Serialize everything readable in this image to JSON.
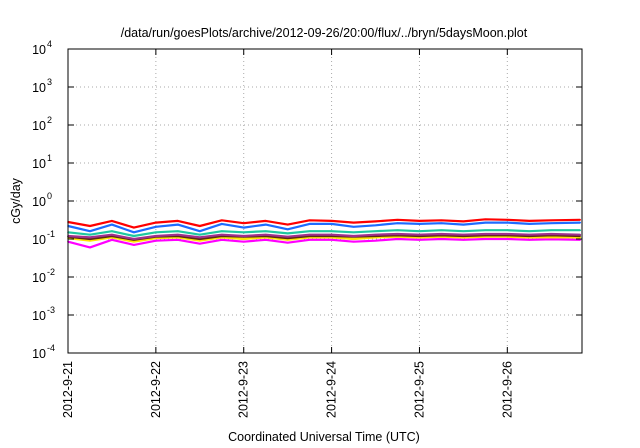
{
  "chart_data": {
    "type": "line",
    "title": "/data/run/goesPlots/archive/2012-09-26/20:00/flux/../bryn/5daysMoon.plot",
    "xlabel": "Coordinated Universal Time (UTC)",
    "ylabel": "cGy/day",
    "yscale": "log",
    "ylim": [
      0.0001,
      10000
    ],
    "xlim_days_from_2012-9-21": [
      0,
      5.85
    ],
    "grid": true,
    "y_ticks": [
      {
        "exp": -4,
        "label": "10",
        "sup": "-4"
      },
      {
        "exp": -3,
        "label": "10",
        "sup": "-3"
      },
      {
        "exp": -2,
        "label": "10",
        "sup": "-2"
      },
      {
        "exp": -1,
        "label": "10",
        "sup": "-1"
      },
      {
        "exp": 0,
        "label": "10",
        "sup": "0"
      },
      {
        "exp": 1,
        "label": "10",
        "sup": "1"
      },
      {
        "exp": 2,
        "label": "10",
        "sup": "2"
      },
      {
        "exp": 3,
        "label": "10",
        "sup": "3"
      },
      {
        "exp": 4,
        "label": "10",
        "sup": "4"
      }
    ],
    "x_ticks": [
      {
        "day": 0,
        "label": "2012-9-21"
      },
      {
        "day": 1,
        "label": "2012-9-22"
      },
      {
        "day": 2,
        "label": "2012-9-23"
      },
      {
        "day": 3,
        "label": "2012-9-24"
      },
      {
        "day": 4,
        "label": "2012-9-25"
      },
      {
        "day": 5,
        "label": "2012-9-26"
      }
    ],
    "x_days": [
      0,
      0.25,
      0.5,
      0.75,
      1,
      1.25,
      1.5,
      1.75,
      2,
      2.25,
      2.5,
      2.75,
      3,
      3.25,
      3.5,
      3.75,
      4,
      4.25,
      4.5,
      4.75,
      5,
      5.25,
      5.5,
      5.83
    ],
    "series": [
      {
        "name": "red",
        "color": "#ff0000",
        "values": [
          0.28,
          0.22,
          0.3,
          0.2,
          0.27,
          0.3,
          0.22,
          0.31,
          0.26,
          0.3,
          0.24,
          0.31,
          0.3,
          0.27,
          0.29,
          0.32,
          0.3,
          0.31,
          0.29,
          0.33,
          0.32,
          0.3,
          0.31,
          0.32
        ]
      },
      {
        "name": "blue",
        "color": "#1e6bff",
        "values": [
          0.22,
          0.16,
          0.24,
          0.15,
          0.21,
          0.24,
          0.16,
          0.25,
          0.2,
          0.24,
          0.18,
          0.25,
          0.25,
          0.21,
          0.23,
          0.26,
          0.25,
          0.26,
          0.24,
          0.27,
          0.27,
          0.25,
          0.26,
          0.27
        ]
      },
      {
        "name": "teal",
        "color": "#1ec8a0",
        "values": [
          0.15,
          0.13,
          0.16,
          0.12,
          0.15,
          0.16,
          0.13,
          0.16,
          0.15,
          0.16,
          0.14,
          0.16,
          0.16,
          0.15,
          0.16,
          0.17,
          0.16,
          0.17,
          0.16,
          0.17,
          0.17,
          0.16,
          0.17,
          0.17
        ]
      },
      {
        "name": "purple",
        "color": "#a0308c",
        "values": [
          0.12,
          0.11,
          0.13,
          0.1,
          0.12,
          0.13,
          0.11,
          0.13,
          0.12,
          0.13,
          0.115,
          0.13,
          0.13,
          0.12,
          0.13,
          0.135,
          0.13,
          0.135,
          0.13,
          0.135,
          0.135,
          0.13,
          0.135,
          0.13
        ]
      },
      {
        "name": "dark",
        "color": "#5a2a10",
        "values": [
          0.115,
          0.1,
          0.12,
          0.095,
          0.115,
          0.12,
          0.1,
          0.12,
          0.115,
          0.12,
          0.105,
          0.12,
          0.12,
          0.115,
          0.12,
          0.125,
          0.12,
          0.125,
          0.12,
          0.125,
          0.125,
          0.12,
          0.125,
          0.12
        ]
      },
      {
        "name": "yellow",
        "color": "#ffe600",
        "values": [
          0.105,
          0.09,
          0.11,
          0.085,
          0.105,
          0.11,
          0.09,
          0.11,
          0.1,
          0.11,
          0.095,
          0.11,
          0.11,
          0.1,
          0.11,
          0.115,
          0.11,
          0.115,
          0.11,
          0.115,
          0.115,
          0.11,
          0.112,
          0.11
        ]
      },
      {
        "name": "magenta",
        "color": "#ff00ff",
        "values": [
          0.085,
          0.06,
          0.095,
          0.07,
          0.09,
          0.095,
          0.075,
          0.095,
          0.085,
          0.095,
          0.08,
          0.095,
          0.095,
          0.085,
          0.09,
          0.1,
          0.095,
          0.1,
          0.095,
          0.1,
          0.1,
          0.095,
          0.098,
          0.095
        ]
      }
    ]
  }
}
